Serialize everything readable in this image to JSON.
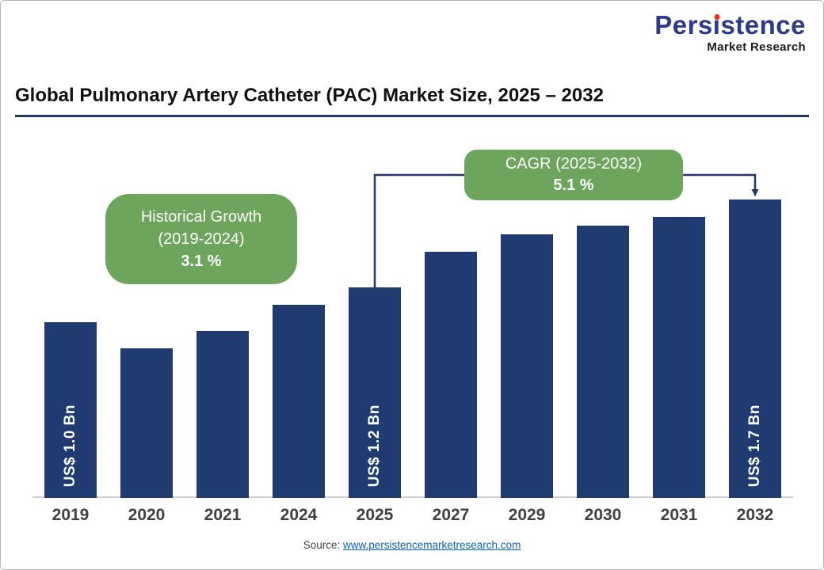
{
  "page": {
    "logo": {
      "brand": "Persistence",
      "brand_pre": "Pers",
      "brand_i": "ı",
      "brand_post": "stence",
      "sub": "Market Research"
    },
    "title": "Global Pulmonary Artery Catheter (PAC) Market Size, 2025 – 2032",
    "footer": {
      "source_label": "Source:",
      "source_link": "www.persistencemarketresearch.com"
    }
  },
  "callouts": {
    "historical": {
      "line1": "Historical Growth",
      "line2": "(2019-2024)",
      "value": "3.1 %"
    },
    "cagr": {
      "line1": "CAGR (2025-2032)",
      "value": "5.1 %"
    }
  },
  "colors": {
    "bar": "#1F3B70",
    "accent_navy": "#1F3864",
    "green": "#6EA55D",
    "link_blue": "#0563C1",
    "logo_navy": "#2B3990",
    "logo_red": "#EE3124"
  },
  "chart_data": {
    "type": "bar",
    "title": "Global Pulmonary Artery Catheter (PAC) Market Size, 2025 – 2032",
    "categories": [
      "2019",
      "2020",
      "2021",
      "2024",
      "2025",
      "2027",
      "2029",
      "2030",
      "2031",
      "2032"
    ],
    "values": [
      1.0,
      0.85,
      0.95,
      1.1,
      1.2,
      1.4,
      1.5,
      1.55,
      1.6,
      1.7
    ],
    "unit": "US$ Bn",
    "bar_labels": {
      "2019": "US$ 1.0 Bn",
      "2025": "US$ 1.2 Bn",
      "2032": "US$ 1.7 Bn"
    },
    "annotations": [
      {
        "text": "Historical Growth (2019-2024) 3.1 %",
        "applies_to": "2019-2024"
      },
      {
        "text": "CAGR (2025-2032) 5.1 %",
        "applies_to": "2025-2032"
      }
    ],
    "xlabel": "",
    "ylabel": "",
    "ylim": [
      0,
      1.8
    ],
    "grid": false,
    "legend": false,
    "bar_color": "#1F3B70"
  }
}
